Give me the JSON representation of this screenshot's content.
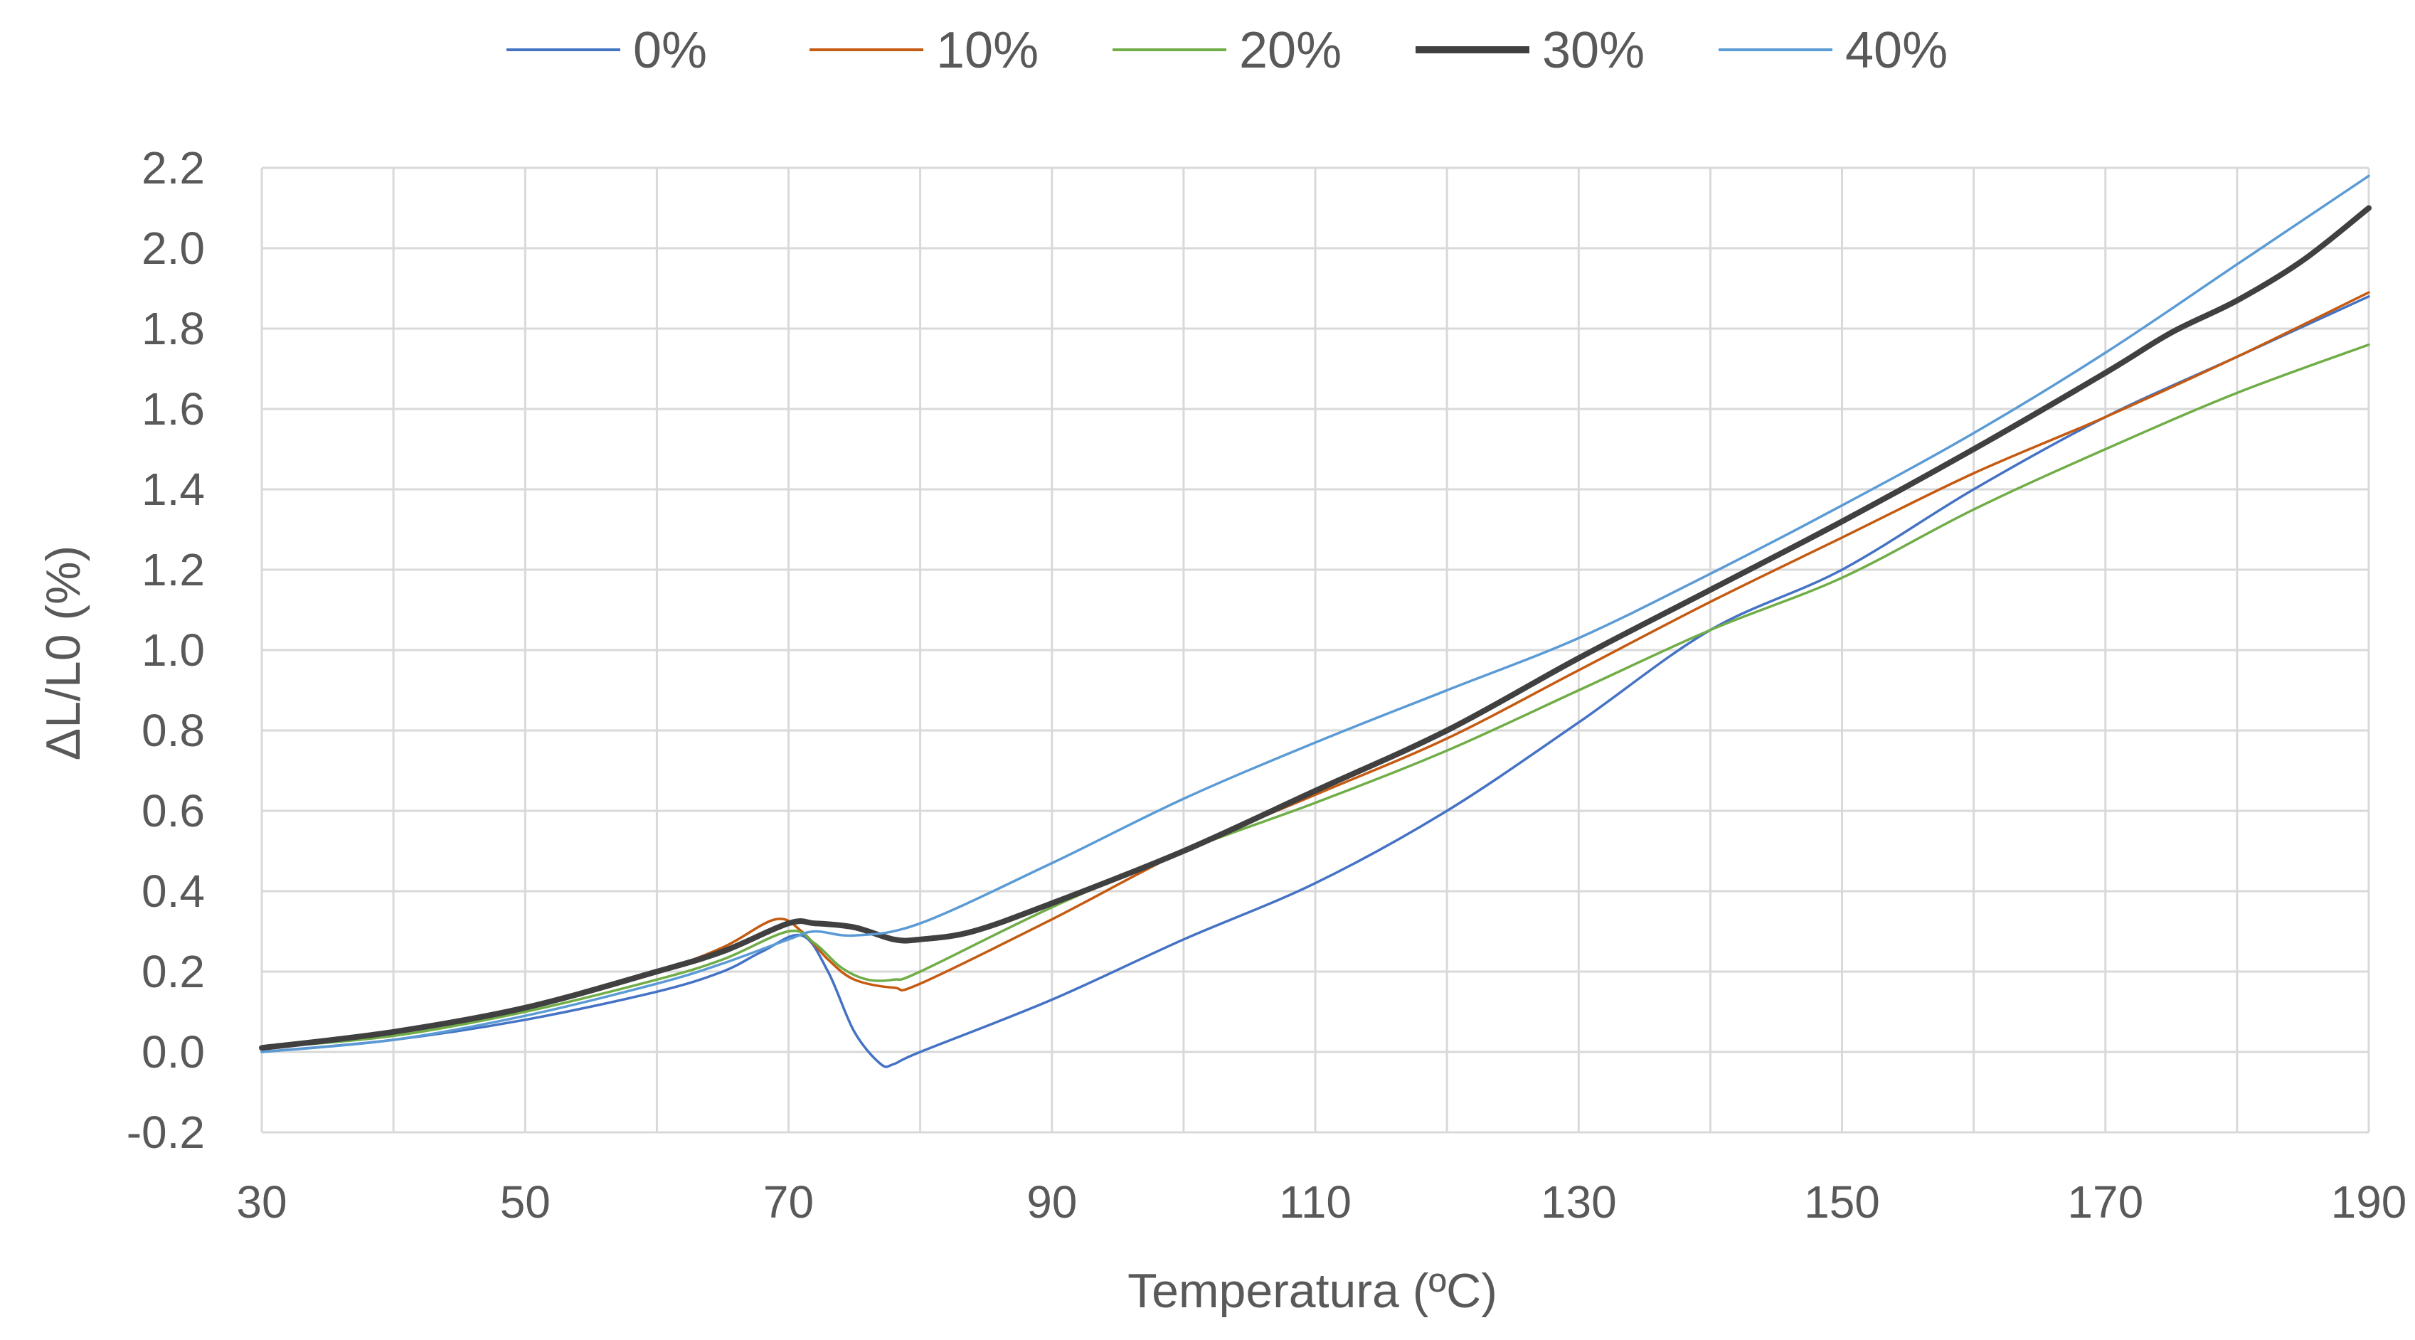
{
  "chart_data": {
    "type": "line",
    "title": "",
    "xlabel": "Temperatura  (ºC)",
    "ylabel": "ΔL/L0  (%)",
    "xlim": [
      30,
      190
    ],
    "ylim": [
      -0.2,
      2.2
    ],
    "xticks": [
      30,
      50,
      70,
      90,
      110,
      130,
      150,
      170,
      190
    ],
    "xtick_labels": [
      "30",
      "50",
      "70",
      "90",
      "110",
      "130",
      "150",
      "170",
      "190"
    ],
    "yticks": [
      -0.2,
      0.0,
      0.2,
      0.4,
      0.6,
      0.8,
      1.0,
      1.2,
      1.4,
      1.6,
      1.8,
      2.0,
      2.2
    ],
    "ytick_labels": [
      "-0.2",
      "0.0",
      "0.2",
      "0.4",
      "0.6",
      "0.8",
      "1.0",
      "1.2",
      "1.4",
      "1.6",
      "1.8",
      "2.0",
      "2.2"
    ],
    "grid": true,
    "legend_position": "top",
    "series": [
      {
        "name": "0%",
        "color": "#4472c4",
        "weight": "thin",
        "points": [
          [
            30,
            0.0
          ],
          [
            40,
            0.03
          ],
          [
            50,
            0.08
          ],
          [
            60,
            0.15
          ],
          [
            65,
            0.2
          ],
          [
            68,
            0.25
          ],
          [
            71,
            0.29
          ],
          [
            73,
            0.2
          ],
          [
            75,
            0.05
          ],
          [
            77,
            -0.03
          ],
          [
            78,
            -0.03
          ],
          [
            80,
            0.0
          ],
          [
            90,
            0.13
          ],
          [
            100,
            0.28
          ],
          [
            110,
            0.42
          ],
          [
            120,
            0.6
          ],
          [
            130,
            0.82
          ],
          [
            140,
            1.05
          ],
          [
            150,
            1.2
          ],
          [
            160,
            1.4
          ],
          [
            170,
            1.58
          ],
          [
            180,
            1.73
          ],
          [
            190,
            1.88
          ]
        ]
      },
      {
        "name": "10%",
        "color": "#c55a11",
        "weight": "thin",
        "points": [
          [
            30,
            0.01
          ],
          [
            40,
            0.05
          ],
          [
            50,
            0.11
          ],
          [
            60,
            0.2
          ],
          [
            65,
            0.26
          ],
          [
            69,
            0.33
          ],
          [
            71,
            0.3
          ],
          [
            73,
            0.23
          ],
          [
            75,
            0.18
          ],
          [
            78,
            0.16
          ],
          [
            80,
            0.17
          ],
          [
            90,
            0.33
          ],
          [
            100,
            0.5
          ],
          [
            110,
            0.64
          ],
          [
            120,
            0.78
          ],
          [
            130,
            0.95
          ],
          [
            140,
            1.12
          ],
          [
            150,
            1.28
          ],
          [
            160,
            1.44
          ],
          [
            170,
            1.58
          ],
          [
            180,
            1.73
          ],
          [
            190,
            1.89
          ]
        ]
      },
      {
        "name": "20%",
        "color": "#70ad47",
        "weight": "thin",
        "points": [
          [
            30,
            0.01
          ],
          [
            40,
            0.04
          ],
          [
            50,
            0.1
          ],
          [
            60,
            0.18
          ],
          [
            65,
            0.23
          ],
          [
            70,
            0.3
          ],
          [
            72,
            0.27
          ],
          [
            74,
            0.21
          ],
          [
            76,
            0.18
          ],
          [
            78,
            0.18
          ],
          [
            80,
            0.2
          ],
          [
            90,
            0.36
          ],
          [
            100,
            0.5
          ],
          [
            110,
            0.62
          ],
          [
            120,
            0.75
          ],
          [
            130,
            0.9
          ],
          [
            140,
            1.05
          ],
          [
            150,
            1.18
          ],
          [
            160,
            1.35
          ],
          [
            170,
            1.5
          ],
          [
            180,
            1.64
          ],
          [
            190,
            1.76
          ]
        ]
      },
      {
        "name": "30%",
        "color": "#404040",
        "weight": "thick",
        "points": [
          [
            30,
            0.01
          ],
          [
            40,
            0.05
          ],
          [
            50,
            0.11
          ],
          [
            60,
            0.2
          ],
          [
            65,
            0.25
          ],
          [
            70,
            0.32
          ],
          [
            72,
            0.32
          ],
          [
            75,
            0.31
          ],
          [
            78,
            0.28
          ],
          [
            80,
            0.28
          ],
          [
            84,
            0.3
          ],
          [
            90,
            0.37
          ],
          [
            100,
            0.5
          ],
          [
            110,
            0.65
          ],
          [
            120,
            0.8
          ],
          [
            130,
            0.98
          ],
          [
            140,
            1.15
          ],
          [
            150,
            1.32
          ],
          [
            160,
            1.5
          ],
          [
            170,
            1.69
          ],
          [
            175,
            1.79
          ],
          [
            180,
            1.87
          ],
          [
            185,
            1.97
          ],
          [
            190,
            2.1
          ]
        ]
      },
      {
        "name": "40%",
        "color": "#5b9bd5",
        "weight": "thin",
        "points": [
          [
            30,
            0.0
          ],
          [
            40,
            0.03
          ],
          [
            50,
            0.09
          ],
          [
            60,
            0.17
          ],
          [
            65,
            0.22
          ],
          [
            70,
            0.28
          ],
          [
            72,
            0.3
          ],
          [
            75,
            0.29
          ],
          [
            80,
            0.32
          ],
          [
            90,
            0.47
          ],
          [
            100,
            0.63
          ],
          [
            110,
            0.77
          ],
          [
            120,
            0.9
          ],
          [
            130,
            1.03
          ],
          [
            140,
            1.19
          ],
          [
            150,
            1.36
          ],
          [
            160,
            1.54
          ],
          [
            170,
            1.74
          ],
          [
            180,
            1.96
          ],
          [
            190,
            2.18
          ]
        ]
      }
    ]
  }
}
